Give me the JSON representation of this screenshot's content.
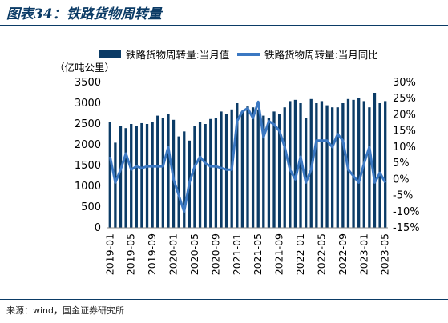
{
  "header": {
    "title": "图表34：铁路货物周转量"
  },
  "footer": {
    "source": "来源：wind，国金证券研究所"
  },
  "colors": {
    "bar": "#0b3b66",
    "line": "#3b78c2",
    "rule": "#0b3b66"
  },
  "chart_data": {
    "type": "bar",
    "x": [
      "2019-01",
      "2019-02",
      "2019-03",
      "2019-04",
      "2019-05",
      "2019-06",
      "2019-07",
      "2019-08",
      "2019-09",
      "2019-10",
      "2019-11",
      "2019-12",
      "2020-01",
      "2020-02",
      "2020-03",
      "2020-04",
      "2020-05",
      "2020-06",
      "2020-07",
      "2020-08",
      "2020-09",
      "2020-10",
      "2020-11",
      "2020-12",
      "2021-01",
      "2021-02",
      "2021-03",
      "2021-04",
      "2021-05",
      "2021-06",
      "2021-07",
      "2021-08",
      "2021-09",
      "2021-10",
      "2021-11",
      "2021-12",
      "2022-01",
      "2022-02",
      "2022-03",
      "2022-04",
      "2022-05",
      "2022-06",
      "2022-07",
      "2022-08",
      "2022-09",
      "2022-10",
      "2022-11",
      "2022-12",
      "2023-01",
      "2023-02",
      "2023-03",
      "2023-04",
      "2023-05"
    ],
    "series": [
      {
        "name": "铁路货物周转量:当月值",
        "type": "bar",
        "axis": "left",
        "values": [
          2550,
          2050,
          2450,
          2400,
          2500,
          2450,
          2520,
          2500,
          2550,
          2700,
          2650,
          2750,
          2600,
          2200,
          2320,
          2100,
          2450,
          2550,
          2500,
          2620,
          2650,
          2800,
          2750,
          2850,
          3000,
          2800,
          2920,
          2900,
          2850,
          2700,
          2650,
          2800,
          2750,
          2900,
          3050,
          3080,
          3000,
          2650,
          3100,
          3000,
          3050,
          2950,
          2900,
          2900,
          3000,
          3100,
          3080,
          3120,
          3050,
          2900,
          3250,
          3000,
          3050
        ]
      },
      {
        "name": "铁路货物周转量:当月同比",
        "type": "line",
        "axis": "right",
        "values": [
          7,
          -1,
          3,
          8,
          3,
          4,
          3.5,
          4,
          4,
          4,
          4,
          10,
          0,
          -5,
          -10,
          -1,
          4,
          7,
          5,
          4,
          4,
          3.5,
          3,
          3,
          18,
          21,
          22,
          19,
          24,
          13,
          18,
          17,
          15,
          10,
          3,
          0,
          7,
          -1,
          3,
          12,
          12,
          12,
          10,
          14,
          12,
          3,
          1,
          -1,
          5,
          10,
          -1,
          2,
          -1
        ]
      }
    ],
    "xticks": [
      "2019-01",
      "2019-05",
      "2019-09",
      "2020-01",
      "2020-05",
      "2020-09",
      "2021-01",
      "2021-05",
      "2021-09",
      "2022-01",
      "2022-05",
      "2022-09",
      "2023-01",
      "2023-05"
    ],
    "ylabel": "（亿吨公里）",
    "ylim": [
      0,
      3500
    ],
    "yticks": [
      0,
      500,
      1000,
      1500,
      2000,
      2500,
      3000,
      3500
    ],
    "y2lim": [
      -15,
      30
    ],
    "y2ticks": [
      "-15%",
      "-10%",
      "-5%",
      "0%",
      "5%",
      "10%",
      "15%",
      "20%",
      "25%",
      "30%"
    ],
    "legend_position": "top",
    "grid": false
  }
}
